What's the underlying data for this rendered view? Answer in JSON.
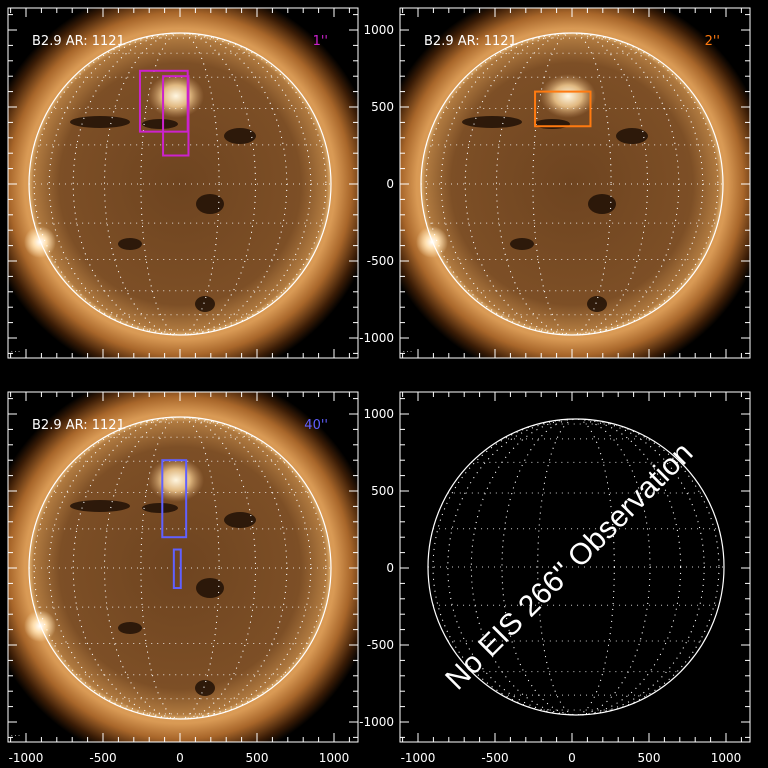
{
  "axis_ticks": [
    "-1000",
    "-500",
    "0",
    "500",
    "1000"
  ],
  "axis_values": [
    -1000,
    -500,
    0,
    500,
    1000
  ],
  "panels": [
    {
      "title": "B2.9  AR: 1121",
      "label": "1''",
      "label_color": "#cc22cc",
      "has_image": true,
      "footer": "..."
    },
    {
      "title": "B2.9  AR: 1121",
      "label": "2''",
      "label_color": "#ff7a10",
      "has_image": true,
      "footer": "..."
    },
    {
      "title": "B2.9  AR: 1121",
      "label": "40''",
      "label_color": "#6060ff",
      "has_image": true,
      "footer": "..."
    },
    {
      "has_image": false,
      "message": "No EIS 266'' Observation"
    }
  ],
  "colors": {
    "disk": "#8a5a2a",
    "corona": "#c48a4a",
    "limb": "#ffffff"
  }
}
